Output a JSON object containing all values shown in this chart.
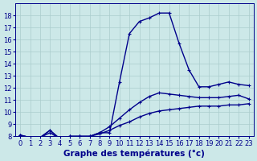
{
  "xlabel": "Graphe des températures (°c)",
  "hours": [
    0,
    1,
    2,
    3,
    4,
    5,
    6,
    7,
    8,
    9,
    10,
    11,
    12,
    13,
    14,
    15,
    16,
    17,
    18,
    19,
    20,
    21,
    22,
    23
  ],
  "line_upper": [
    8.1,
    7.9,
    7.9,
    8.5,
    7.8,
    8.0,
    8.0,
    8.0,
    8.3,
    8.3,
    12.5,
    16.5,
    17.5,
    17.8,
    18.2,
    18.2,
    15.7,
    13.5,
    12.1,
    12.1,
    12.3,
    12.5,
    12.3,
    12.2
  ],
  "line_mid": [
    8.1,
    7.9,
    7.9,
    8.5,
    7.8,
    8.0,
    8.0,
    8.0,
    8.3,
    8.8,
    9.5,
    10.2,
    10.8,
    11.3,
    11.6,
    11.5,
    11.4,
    11.3,
    11.2,
    11.2,
    11.2,
    11.3,
    11.4,
    11.1
  ],
  "line_lower": [
    8.1,
    7.9,
    7.9,
    8.3,
    7.8,
    8.0,
    8.0,
    8.0,
    8.2,
    8.5,
    8.9,
    9.2,
    9.6,
    9.9,
    10.1,
    10.2,
    10.3,
    10.4,
    10.5,
    10.5,
    10.5,
    10.6,
    10.6,
    10.7
  ],
  "line_color": "#00008b",
  "bg_color": "#cce8e8",
  "grid_color": "#aacccc",
  "ylim": [
    8,
    19
  ],
  "xlim": [
    -0.5,
    23.5
  ],
  "yticks": [
    8,
    9,
    10,
    11,
    12,
    13,
    14,
    15,
    16,
    17,
    18
  ],
  "xticks": [
    0,
    1,
    2,
    3,
    4,
    5,
    6,
    7,
    8,
    9,
    10,
    11,
    12,
    13,
    14,
    15,
    16,
    17,
    18,
    19,
    20,
    21,
    22,
    23
  ],
  "marker": "+",
  "marker_size": 3.5,
  "line_width": 1.0,
  "xlabel_fontsize": 7.5,
  "tick_fontsize": 6.0
}
